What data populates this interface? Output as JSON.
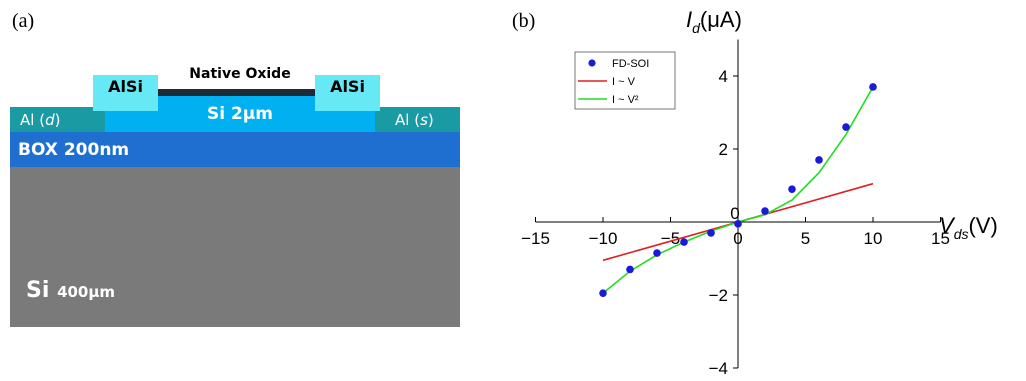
{
  "panel_a": {
    "label": "(a)",
    "layers": {
      "native_oxide": "Native Oxide",
      "alsi_left": "AlSi",
      "alsi_right": "AlSi",
      "si_film": "Si  2μm",
      "al_d_prefix": "Al (",
      "al_d_term": "d",
      "al_d_suffix": ")",
      "al_s_prefix": "Al (",
      "al_s_term": "s",
      "al_s_suffix": ")",
      "box": "BOX 200nm",
      "substrate_main": "Si",
      "substrate_thickness": "400μm"
    },
    "colors": {
      "substrate": "#7a7a7a",
      "box": "#1f6fd1",
      "al": "#1a9ba3",
      "si_film": "#00b0f0",
      "alsi": "#66e8f5",
      "oxide": "#1e2a38"
    }
  },
  "panel_b": {
    "label": "(b)",
    "chart_data": {
      "type": "line",
      "xlabel_main": "V",
      "xlabel_sub": "ds",
      "xlabel_unit": "(V)",
      "ylabel_main": "I",
      "ylabel_sub": "d",
      "ylabel_unit": "(μA)",
      "xlim": [
        -15,
        15
      ],
      "ylim": [
        -4,
        5
      ],
      "xticks": [
        -15,
        -10,
        -5,
        0,
        5,
        10,
        15
      ],
      "yticks": [
        -4,
        -2,
        0,
        2,
        4
      ],
      "legend_position": "top-left",
      "legend_entries": [
        "FD-SOI",
        "I ~ V",
        "I ~ V²"
      ],
      "series": [
        {
          "name": "FD-SOI",
          "kind": "scatter",
          "color": "#1a1adb",
          "x": [
            -10,
            -8,
            -6,
            -4,
            -2,
            0,
            2,
            4,
            6,
            8,
            10
          ],
          "y": [
            -1.95,
            -1.3,
            -0.85,
            -0.55,
            -0.3,
            -0.05,
            0.3,
            0.9,
            1.7,
            2.6,
            3.7
          ]
        },
        {
          "name": "I ~ V",
          "kind": "line",
          "color": "#e02020",
          "x": [
            -10,
            10
          ],
          "y": [
            -1.05,
            1.05
          ]
        },
        {
          "name": "I ~ V²",
          "kind": "line",
          "color": "#22dd22",
          "x": [
            -10,
            -8,
            -6,
            -4,
            -2,
            0,
            2,
            4,
            6,
            8,
            10
          ],
          "y": [
            -1.95,
            -1.35,
            -0.9,
            -0.55,
            -0.25,
            0,
            0.2,
            0.6,
            1.35,
            2.4,
            3.7
          ]
        }
      ]
    }
  }
}
